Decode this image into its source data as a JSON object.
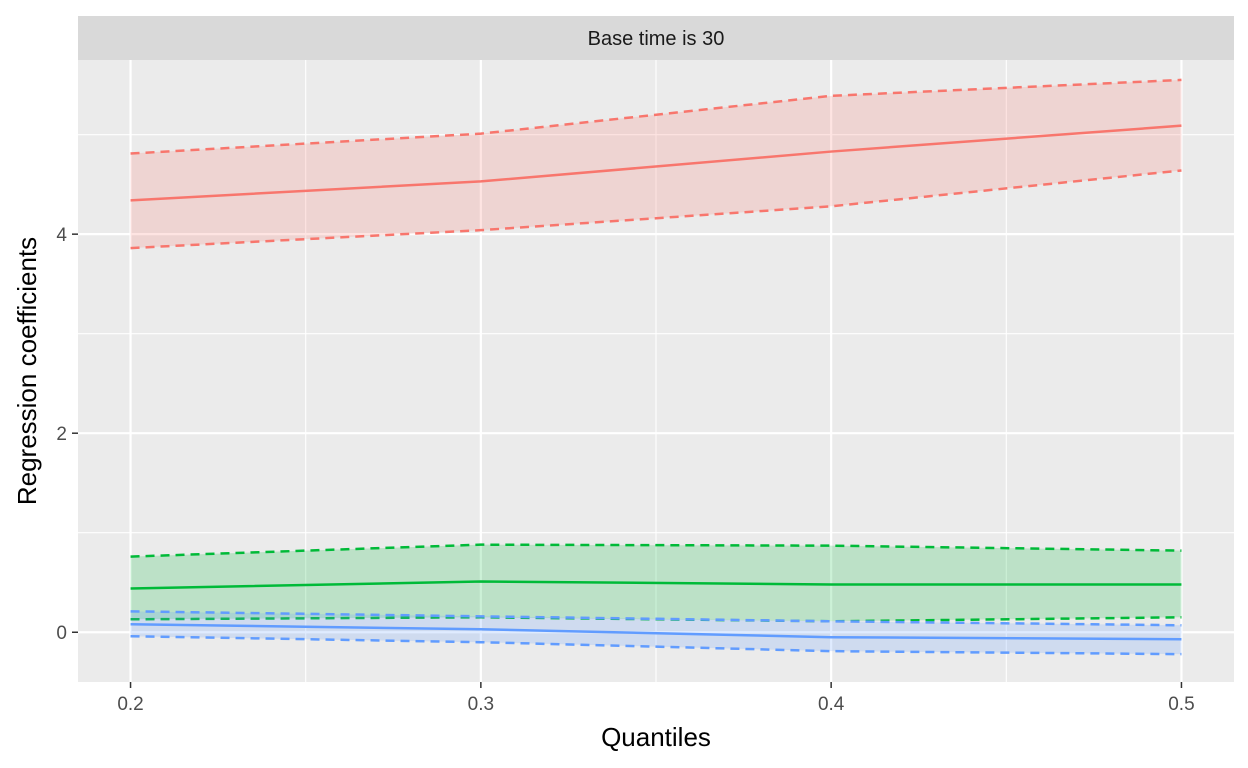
{
  "chart_data": {
    "type": "line",
    "facet_label": "Base time is 30",
    "xlabel": "Quantiles",
    "ylabel": "Regression coefficients",
    "x": [
      0.2,
      0.3,
      0.4,
      0.5
    ],
    "xlim": [
      0.185,
      0.515
    ],
    "ylim": [
      -0.5,
      5.75
    ],
    "x_ticks": [
      0.2,
      0.3,
      0.4,
      0.5
    ],
    "x_tick_labels": [
      "0.2",
      "0.3",
      "0.4",
      "0.5"
    ],
    "y_ticks": [
      0,
      2,
      4
    ],
    "y_tick_labels": [
      "0",
      "2",
      "4"
    ],
    "grid": true,
    "legend": "none",
    "series": [
      {
        "color": "#F8766D",
        "values": [
          4.34,
          4.53,
          4.83,
          5.09
        ],
        "lower": [
          3.86,
          4.04,
          4.28,
          4.64
        ],
        "upper": [
          4.81,
          5.01,
          5.39,
          5.55
        ]
      },
      {
        "color": "#00BA38",
        "values": [
          0.44,
          0.51,
          0.48,
          0.48
        ],
        "lower": [
          0.13,
          0.15,
          0.11,
          0.15
        ],
        "upper": [
          0.76,
          0.88,
          0.87,
          0.82
        ]
      },
      {
        "color": "#619CFF",
        "values": [
          0.08,
          0.03,
          -0.05,
          -0.07
        ],
        "lower": [
          -0.04,
          -0.1,
          -0.19,
          -0.22
        ],
        "upper": [
          0.21,
          0.16,
          0.11,
          0.07
        ]
      }
    ]
  }
}
